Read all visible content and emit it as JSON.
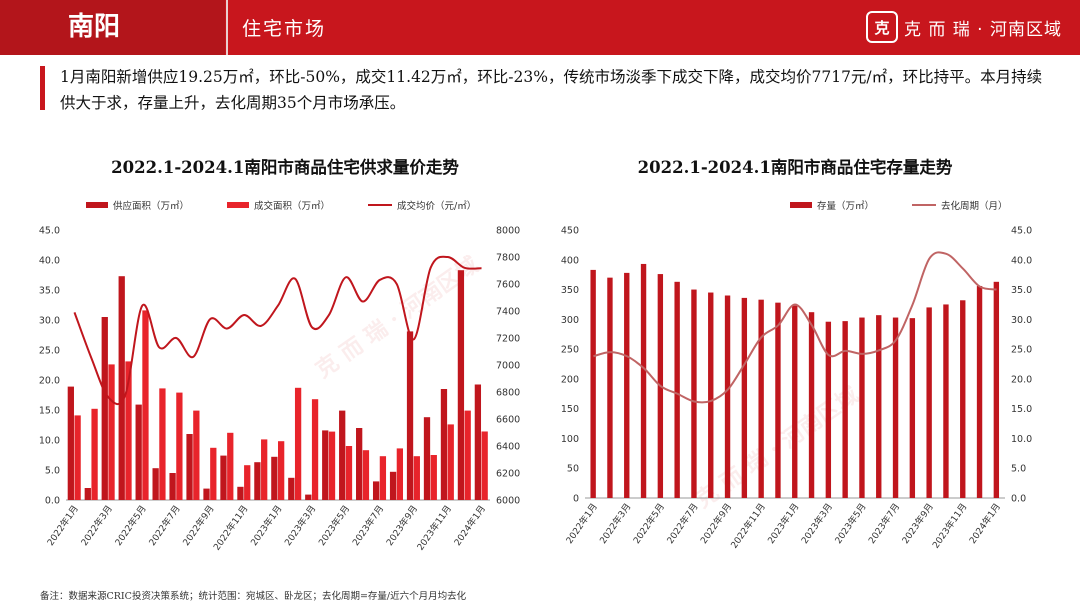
{
  "header": {
    "city": "南阳",
    "section": "住宅市场",
    "brand_logo": "克",
    "brand_text": "克 而 瑞 · 河南区域"
  },
  "summary": "1月南阳新增供应19.25万㎡，环比-50%，成交11.42万㎡，环比-23%，传统市场淡季下成交下降，成交均价7717元/㎡，环比持平。本月持续供大于求，存量上升，去化周期35个月市场承压。",
  "footnote": "备注：数据来源CRIC投资决策系统；统计范围：宛城区、卧龙区；去化周期=存量/近六个月月均去化",
  "watermark": "克 而 瑞 · 河南区域",
  "colors": {
    "brand": "#c8161d",
    "supply": "#c0161d",
    "deal": "#e8242b",
    "price": "#c0161d",
    "stock": "#c0161d",
    "cycle": "#c06464"
  },
  "chart_data": [
    {
      "type": "bar",
      "title": "2022.1-2024.1南阳市商品住宅供求量价走势",
      "categories": [
        "2022年1月",
        "2022年2月",
        "2022年3月",
        "2022年4月",
        "2022年5月",
        "2022年6月",
        "2022年7月",
        "2022年8月",
        "2022年9月",
        "2022年10月",
        "2022年11月",
        "2022年12月",
        "2023年1月",
        "2023年2月",
        "2023年3月",
        "2023年4月",
        "2023年5月",
        "2023年6月",
        "2023年7月",
        "2023年8月",
        "2023年9月",
        "2023年10月",
        "2023年11月",
        "2023年12月",
        "2024年1月"
      ],
      "tick_labels": [
        "2022年1月",
        "2022年3月",
        "2022年5月",
        "2022年7月",
        "2022年9月",
        "2022年11月",
        "2023年1月",
        "2023年3月",
        "2023年5月",
        "2023年7月",
        "2023年9月",
        "2023年11月",
        "2024年1月"
      ],
      "series": [
        {
          "name": "供应面积（万㎡）",
          "kind": "bar",
          "axis": "left",
          "values": [
            18.9,
            2.0,
            30.5,
            37.3,
            15.9,
            5.3,
            4.5,
            11.0,
            1.9,
            7.4,
            2.2,
            6.3,
            7.2,
            3.7,
            0.9,
            11.6,
            14.9,
            12.0,
            3.1,
            4.7,
            28.1,
            13.8,
            18.5,
            38.3,
            19.25
          ]
        },
        {
          "name": "成交面积（万㎡）",
          "kind": "bar",
          "axis": "left",
          "values": [
            14.1,
            15.2,
            22.6,
            23.1,
            31.6,
            18.6,
            17.9,
            14.9,
            8.7,
            11.2,
            5.8,
            10.1,
            9.8,
            18.7,
            16.8,
            11.4,
            9.0,
            8.3,
            7.3,
            8.6,
            7.3,
            7.5,
            12.6,
            14.9,
            11.42
          ]
        },
        {
          "name": "成交均价（元/㎡）",
          "kind": "line",
          "axis": "right",
          "values": [
            7390,
            7050,
            6760,
            6780,
            7440,
            7130,
            7200,
            7060,
            7340,
            7270,
            7370,
            7290,
            7440,
            7640,
            7280,
            7370,
            7650,
            7470,
            7630,
            7600,
            7190,
            7720,
            7800,
            7720,
            7717
          ]
        }
      ],
      "ylim_left": [
        0,
        45
      ],
      "yticks_left": [
        "0.0",
        "5.0",
        "10.0",
        "15.0",
        "20.0",
        "25.0",
        "30.0",
        "35.0",
        "40.0",
        "45.0"
      ],
      "ylim_right": [
        6000,
        8000
      ],
      "yticks_right": [
        "6000",
        "6200",
        "6400",
        "6600",
        "6800",
        "7000",
        "7200",
        "7400",
        "7600",
        "7800",
        "8000"
      ],
      "legend": "top"
    },
    {
      "type": "bar",
      "title": "2022.1-2024.1南阳市商品住宅存量走势",
      "categories": [
        "2022年1月",
        "2022年2月",
        "2022年3月",
        "2022年4月",
        "2022年5月",
        "2022年6月",
        "2022年7月",
        "2022年8月",
        "2022年9月",
        "2022年10月",
        "2022年11月",
        "2022年12月",
        "2023年1月",
        "2023年2月",
        "2023年3月",
        "2023年4月",
        "2023年5月",
        "2023年6月",
        "2023年7月",
        "2023年8月",
        "2023年9月",
        "2023年10月",
        "2023年11月",
        "2023年12月",
        "2024年1月"
      ],
      "tick_labels": [
        "2022年1月",
        "2022年3月",
        "2022年5月",
        "2022年7月",
        "2022年9月",
        "2022年11月",
        "2023年1月",
        "2023年3月",
        "2023年5月",
        "2023年7月",
        "2023年9月",
        "2023年11月",
        "2024年1月"
      ],
      "series": [
        {
          "name": "存量（万㎡）",
          "kind": "bar",
          "axis": "left",
          "values": [
            383,
            370,
            378,
            393,
            376,
            363,
            350,
            345,
            340,
            336,
            333,
            328,
            323,
            312,
            296,
            297,
            303,
            307,
            303,
            302,
            320,
            325,
            332,
            356,
            363
          ]
        },
        {
          "name": "去化周期（月）",
          "kind": "line",
          "axis": "right",
          "values": [
            23.8,
            24.5,
            23.8,
            21.8,
            18.8,
            17.5,
            16.2,
            16.3,
            18.2,
            22.5,
            27.0,
            29.0,
            32.5,
            29.0,
            24.0,
            24.7,
            24.2,
            24.8,
            26.5,
            32.5,
            40.2,
            41.0,
            38.5,
            35.5,
            35.0
          ]
        }
      ],
      "ylim_left": [
        0,
        450
      ],
      "yticks_left": [
        "0",
        "50",
        "100",
        "150",
        "200",
        "250",
        "300",
        "350",
        "400",
        "450"
      ],
      "ylim_right": [
        0,
        45
      ],
      "yticks_right": [
        "0.0",
        "5.0",
        "10.0",
        "15.0",
        "20.0",
        "25.0",
        "30.0",
        "35.0",
        "40.0",
        "45.0"
      ],
      "legend": "top"
    }
  ]
}
